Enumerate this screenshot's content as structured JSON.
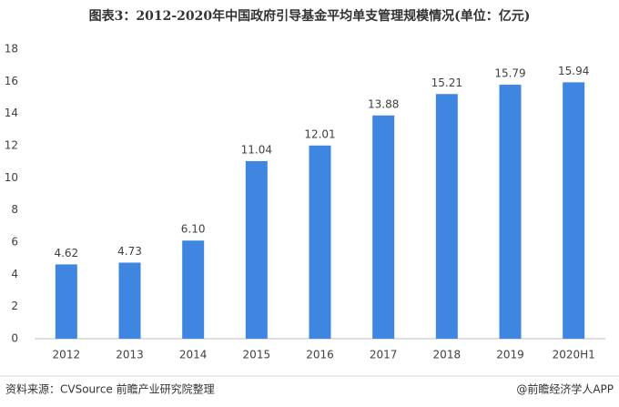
{
  "chart_data": {
    "type": "bar",
    "title": "图表3：2012-2020年中国政府引导基金平均单支管理规模情况(单位：亿元)",
    "categories": [
      "2012",
      "2013",
      "2014",
      "2015",
      "2016",
      "2017",
      "2018",
      "2019",
      "2020H1"
    ],
    "values": [
      4.62,
      4.73,
      6.1,
      11.04,
      12.01,
      13.88,
      15.21,
      15.79,
      15.94
    ],
    "value_labels": [
      "4.62",
      "4.73",
      "6.10",
      "11.04",
      "12.01",
      "13.88",
      "15.21",
      "15.79",
      "15.94"
    ],
    "color": "#3f86e0",
    "ylim": [
      0,
      18
    ],
    "yticks": [
      0,
      2,
      4,
      6,
      8,
      10,
      12,
      14,
      16,
      18
    ],
    "grid": false
  },
  "footer": {
    "source": "资料来源：CVSource 前瞻产业研究院整理",
    "credit": "@前瞻经济学人APP"
  }
}
